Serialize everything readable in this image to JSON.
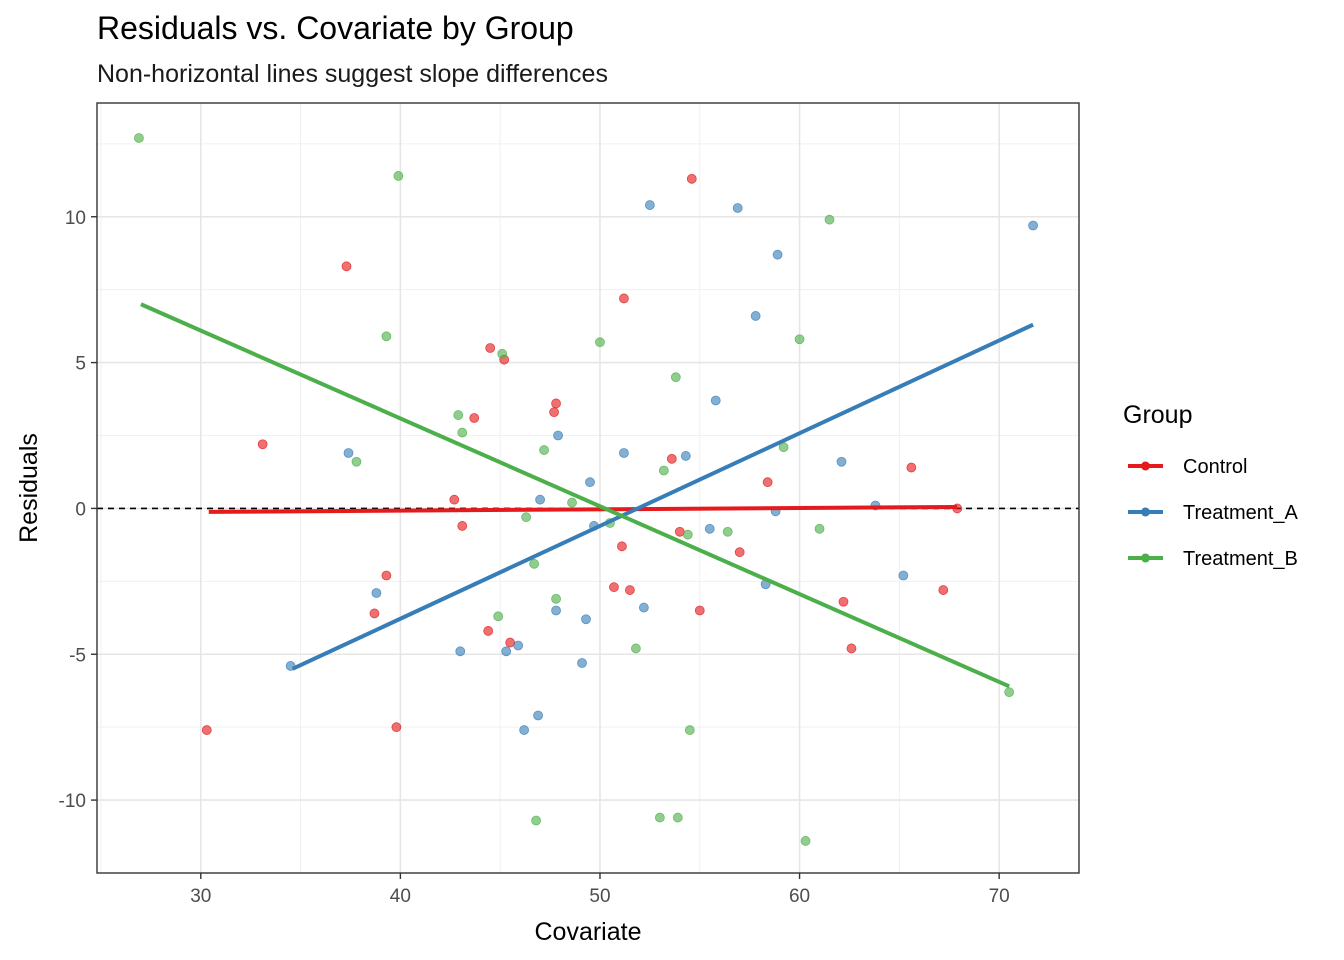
{
  "chart_data": {
    "type": "scatter",
    "title": "Residuals vs. Covariate by Group",
    "subtitle": "Non-horizontal lines suggest slope differences",
    "xlabel": "Covariate",
    "ylabel": "Residuals",
    "xlim": [
      24.8,
      74.0
    ],
    "ylim": [
      -12.5,
      13.9
    ],
    "xticks": [
      30,
      40,
      50,
      60,
      70
    ],
    "yticks": [
      -10,
      -5,
      0,
      5,
      10
    ],
    "xtick_labels": [
      "30",
      "40",
      "50",
      "60",
      "70"
    ],
    "ytick_labels": [
      "-10",
      "-5",
      "0",
      "5",
      "10"
    ],
    "grid": true,
    "reference_line": {
      "y": 0,
      "style": "dashed",
      "color": "#000000"
    },
    "legend": {
      "title": "Group",
      "position": "right"
    },
    "series": [
      {
        "name": "Control",
        "color": "#E41A1C",
        "fit": {
          "x": [
            30.4,
            67.9
          ],
          "y": [
            -0.12,
            0.05
          ]
        },
        "points": [
          [
            30.3,
            -7.6
          ],
          [
            33.1,
            2.2
          ],
          [
            37.3,
            8.3
          ],
          [
            38.7,
            -3.6
          ],
          [
            39.3,
            -2.3
          ],
          [
            39.8,
            -7.5
          ],
          [
            42.7,
            0.3
          ],
          [
            43.1,
            -0.6
          ],
          [
            43.7,
            3.1
          ],
          [
            44.4,
            -4.2
          ],
          [
            44.5,
            5.5
          ],
          [
            45.2,
            5.1
          ],
          [
            45.5,
            -4.6
          ],
          [
            47.7,
            3.3
          ],
          [
            47.8,
            3.6
          ],
          [
            50.7,
            -2.7
          ],
          [
            51.1,
            -1.3
          ],
          [
            51.2,
            7.2
          ],
          [
            51.5,
            -2.8
          ],
          [
            53.6,
            1.7
          ],
          [
            54.0,
            -0.8
          ],
          [
            54.6,
            11.3
          ],
          [
            55.0,
            -3.5
          ],
          [
            57.0,
            -1.5
          ],
          [
            58.4,
            0.9
          ],
          [
            62.2,
            -3.2
          ],
          [
            62.6,
            -4.8
          ],
          [
            65.6,
            1.4
          ],
          [
            67.2,
            -2.8
          ],
          [
            67.9,
            0.0
          ]
        ]
      },
      {
        "name": "Treatment_A",
        "color": "#377EB8",
        "fit": {
          "x": [
            34.6,
            71.7
          ],
          "y": [
            -5.5,
            6.3
          ]
        },
        "points": [
          [
            34.5,
            -5.4
          ],
          [
            37.4,
            1.9
          ],
          [
            38.8,
            -2.9
          ],
          [
            43.0,
            -4.9
          ],
          [
            45.3,
            -4.9
          ],
          [
            45.9,
            -4.7
          ],
          [
            46.2,
            -7.6
          ],
          [
            46.9,
            -7.1
          ],
          [
            47.0,
            0.3
          ],
          [
            47.8,
            -3.5
          ],
          [
            47.9,
            2.5
          ],
          [
            49.1,
            -5.3
          ],
          [
            49.3,
            -3.8
          ],
          [
            49.5,
            0.9
          ],
          [
            49.7,
            -0.6
          ],
          [
            51.2,
            1.9
          ],
          [
            52.2,
            -3.4
          ],
          [
            52.5,
            10.4
          ],
          [
            54.3,
            1.8
          ],
          [
            55.5,
            -0.7
          ],
          [
            55.8,
            3.7
          ],
          [
            56.9,
            10.3
          ],
          [
            57.8,
            6.6
          ],
          [
            58.3,
            -2.6
          ],
          [
            58.9,
            8.7
          ],
          [
            58.8,
            -0.1
          ],
          [
            62.1,
            1.6
          ],
          [
            63.8,
            0.1
          ],
          [
            65.2,
            -2.3
          ],
          [
            71.7,
            9.7
          ]
        ]
      },
      {
        "name": "Treatment_B",
        "color": "#4DAF4A",
        "fit": {
          "x": [
            27.0,
            70.5
          ],
          "y": [
            7.0,
            -6.1
          ]
        },
        "points": [
          [
            26.9,
            12.7
          ],
          [
            37.8,
            1.6
          ],
          [
            39.3,
            5.9
          ],
          [
            39.9,
            11.4
          ],
          [
            42.9,
            3.2
          ],
          [
            43.1,
            2.6
          ],
          [
            45.1,
            5.3
          ],
          [
            44.9,
            -3.7
          ],
          [
            46.3,
            -0.3
          ],
          [
            46.7,
            -1.9
          ],
          [
            46.8,
            -10.7
          ],
          [
            47.2,
            2.0
          ],
          [
            47.8,
            -3.1
          ],
          [
            48.6,
            0.2
          ],
          [
            50.0,
            5.7
          ],
          [
            50.5,
            -0.5
          ],
          [
            51.8,
            -4.8
          ],
          [
            53.0,
            -10.6
          ],
          [
            53.2,
            1.3
          ],
          [
            53.8,
            4.5
          ],
          [
            53.9,
            -10.6
          ],
          [
            54.4,
            -0.9
          ],
          [
            54.5,
            -7.6
          ],
          [
            56.4,
            -0.8
          ],
          [
            59.2,
            2.1
          ],
          [
            60.0,
            5.8
          ],
          [
            60.3,
            -11.4
          ],
          [
            61.0,
            -0.7
          ],
          [
            61.5,
            9.9
          ],
          [
            70.5,
            -6.3
          ]
        ]
      }
    ]
  }
}
